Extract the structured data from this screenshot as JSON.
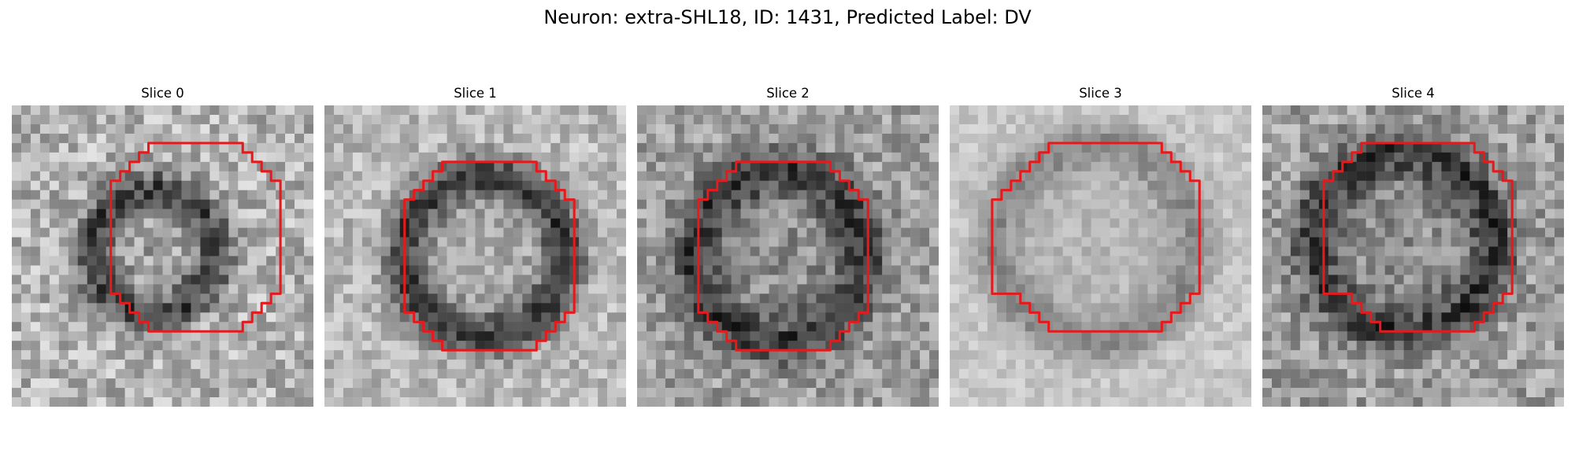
{
  "figure": {
    "title": "Neuron: extra-SHL18, ID: 1431, Predicted Label: DV"
  },
  "panels": [
    {
      "title": "Slice 0"
    },
    {
      "title": "Slice 1"
    },
    {
      "title": "Slice 2"
    },
    {
      "title": "Slice 3"
    },
    {
      "title": "Slice 4"
    }
  ],
  "colors": {
    "contour": "#e41a1c",
    "background": "#ffffff"
  }
}
